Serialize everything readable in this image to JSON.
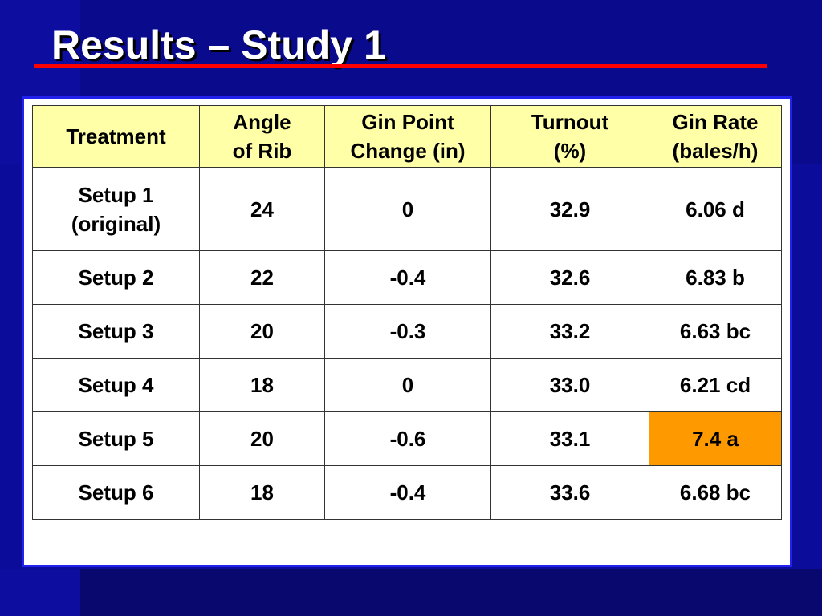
{
  "slide": {
    "title": "Results – Study 1",
    "colors": {
      "background": "#0a0a8c",
      "title_text": "#ffffff",
      "title_rule": "#ff0000",
      "header_fill": "#ffffa8",
      "highlight_fill": "#ff9900",
      "panel_border": "#2222ee"
    }
  },
  "table": {
    "headers": [
      "Treatment",
      "Angle\nof Rib",
      "Gin Point\nChange (in)",
      "Turnout\n(%)",
      "Gin Rate\n(bales/h)"
    ],
    "rows": [
      [
        "Setup 1\n(original)",
        "24",
        "0",
        "32.9",
        "6.06 d"
      ],
      [
        "Setup 2",
        "22",
        "-0.4",
        "32.6",
        "6.83 b"
      ],
      [
        "Setup 3",
        "20",
        "-0.3",
        "33.2",
        "6.63 bc"
      ],
      [
        "Setup 4",
        "18",
        "0",
        "33.0",
        "6.21 cd"
      ],
      [
        "Setup 5",
        "20",
        "-0.6",
        "33.1",
        "7.4 a"
      ],
      [
        "Setup 6",
        "18",
        "-0.4",
        "33.6",
        "6.68 bc"
      ]
    ],
    "highlighted_cell": "Setup 5 gin rate"
  }
}
